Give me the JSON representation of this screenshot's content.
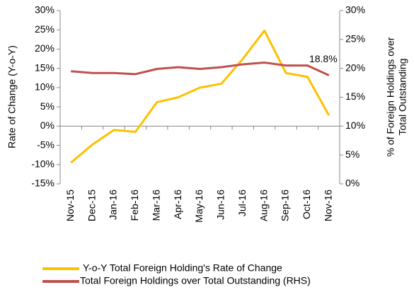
{
  "chart_data": {
    "type": "line",
    "y_label": "Rate of Change (Y-o-Y)",
    "y2_label": [
      "% of Foreign Holdings over",
      "Total Outstanding"
    ],
    "categories": [
      "Nov-15",
      "Dec-15",
      "Jan-16",
      "Feb-16",
      "Mar-16",
      "Apr-16",
      "May-16",
      "Jun-16",
      "Jul-16",
      "Aug-16",
      "Sep-16",
      "Oct-16",
      "Nov-16"
    ],
    "series": [
      {
        "name": "Y-o-Y Total Foreign Holding's Rate of Change",
        "color": "#ffc000",
        "axis": "y",
        "values": [
          -9.5,
          -4.8,
          -1.0,
          -1.5,
          6.2,
          7.5,
          10.0,
          11.0,
          17.5,
          24.8,
          13.8,
          12.8,
          2.8
        ]
      },
      {
        "name": "Total Foreign Holdings over Total Outstanding (RHS)",
        "color": "#c0504d",
        "axis": "y2",
        "values": [
          19.5,
          19.2,
          19.2,
          19.0,
          19.9,
          20.2,
          19.9,
          20.2,
          20.7,
          21.0,
          20.5,
          20.5,
          18.8
        ],
        "value_labels": [
          null,
          null,
          null,
          null,
          null,
          null,
          null,
          null,
          null,
          null,
          null,
          null,
          "18.8%"
        ]
      }
    ],
    "ylim": [
      -15,
      30
    ],
    "yticks": [
      {
        "value": -15,
        "label": "-15%"
      },
      {
        "value": -10,
        "label": "-10%"
      },
      {
        "value": -5,
        "label": "-5%"
      },
      {
        "value": 0,
        "label": "0%"
      },
      {
        "value": 5,
        "label": "5%"
      },
      {
        "value": 10,
        "label": "10%"
      },
      {
        "value": 15,
        "label": "15%"
      },
      {
        "value": 20,
        "label": "20%"
      },
      {
        "value": 25,
        "label": "25%"
      },
      {
        "value": 30,
        "label": "30%"
      }
    ],
    "y2lim": [
      0,
      30
    ],
    "y2ticks": [
      {
        "value": 0,
        "label": "0%"
      },
      {
        "value": 5,
        "label": "5%"
      },
      {
        "value": 10,
        "label": "10%"
      },
      {
        "value": 15,
        "label": "15%"
      },
      {
        "value": 20,
        "label": "20%"
      },
      {
        "value": 25,
        "label": "25%"
      },
      {
        "value": 30,
        "label": "30%"
      }
    ],
    "legend": "bottom"
  }
}
